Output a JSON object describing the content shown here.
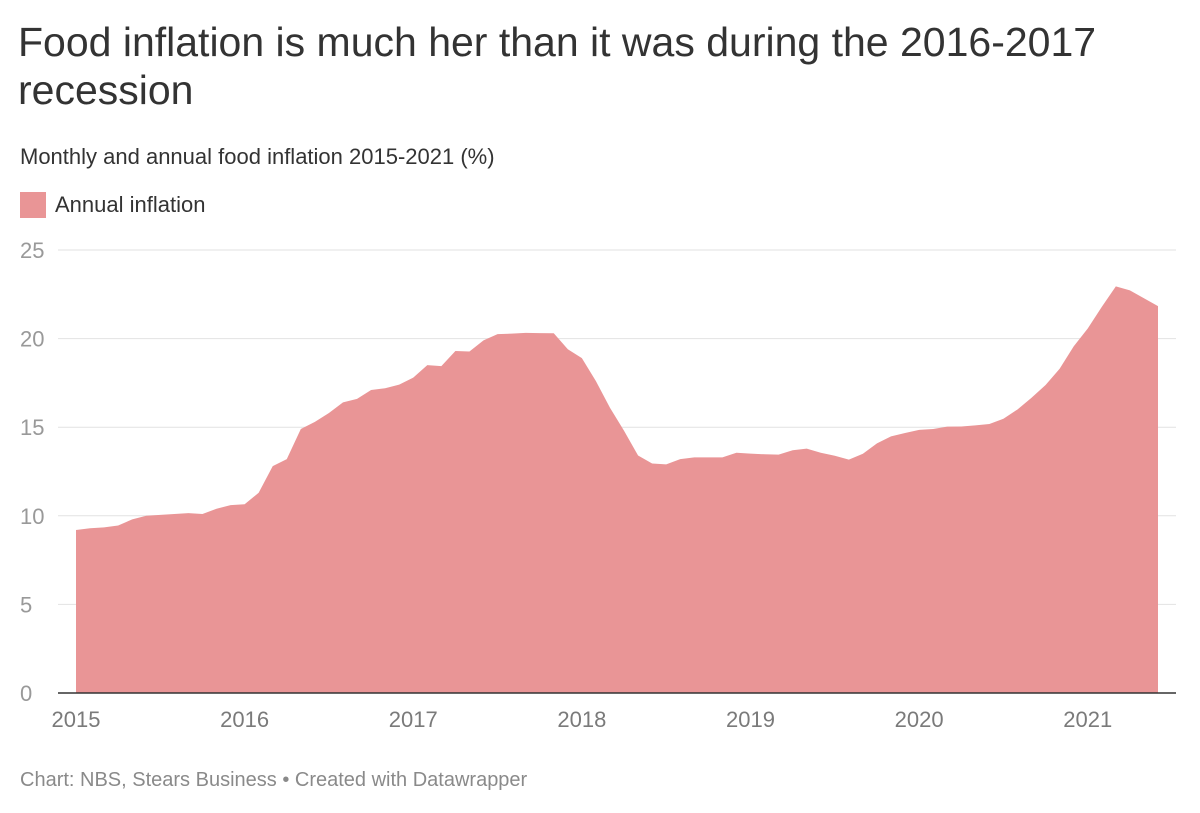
{
  "title": "Food inflation is much her than it was during the 2016-2017 recession",
  "subtitle": "Monthly and annual food inflation 2015-2021 (%)",
  "source_note": "Chart: NBS, Stears Business • Created with Datawrapper",
  "colors": {
    "series": "#e99596",
    "grid": "#e2e2e2",
    "baseline": "#333333",
    "tick_text": "#999999",
    "year_text": "#7a7a7a"
  },
  "chart_data": {
    "type": "area",
    "legend": [
      "Annual inflation"
    ],
    "legend_placement": "top-left",
    "grid": true,
    "ylim": [
      0,
      25
    ],
    "y_ticks": [
      0,
      5,
      10,
      15,
      20,
      25
    ],
    "x_ticks": [
      2015,
      2016,
      2017,
      2018,
      2019,
      2020,
      2021
    ],
    "x_range": [
      "2015-01",
      "2021-06"
    ],
    "series": [
      {
        "name": "Annual inflation",
        "x": [
          "2015-01",
          "2015-02",
          "2015-03",
          "2015-04",
          "2015-05",
          "2015-06",
          "2015-07",
          "2015-08",
          "2015-09",
          "2015-10",
          "2015-11",
          "2015-12",
          "2016-01",
          "2016-02",
          "2016-03",
          "2016-04",
          "2016-05",
          "2016-06",
          "2016-07",
          "2016-08",
          "2016-09",
          "2016-10",
          "2016-11",
          "2016-12",
          "2017-01",
          "2017-02",
          "2017-03",
          "2017-04",
          "2017-05",
          "2017-06",
          "2017-07",
          "2017-08",
          "2017-09",
          "2017-10",
          "2017-11",
          "2017-12",
          "2018-01",
          "2018-02",
          "2018-03",
          "2018-04",
          "2018-05",
          "2018-06",
          "2018-07",
          "2018-08",
          "2018-09",
          "2018-10",
          "2018-11",
          "2018-12",
          "2019-01",
          "2019-02",
          "2019-03",
          "2019-04",
          "2019-05",
          "2019-06",
          "2019-07",
          "2019-08",
          "2019-09",
          "2019-10",
          "2019-11",
          "2019-12",
          "2020-01",
          "2020-02",
          "2020-03",
          "2020-04",
          "2020-05",
          "2020-06",
          "2020-07",
          "2020-08",
          "2020-09",
          "2020-10",
          "2020-11",
          "2020-12",
          "2021-01",
          "2021-02",
          "2021-03",
          "2021-04",
          "2021-05",
          "2021-06"
        ],
        "values": [
          9.2,
          9.3,
          9.35,
          9.45,
          9.8,
          10.0,
          10.05,
          10.1,
          10.15,
          10.1,
          10.4,
          10.6,
          10.65,
          11.3,
          12.8,
          13.2,
          14.9,
          15.3,
          15.8,
          16.4,
          16.6,
          17.1,
          17.2,
          17.4,
          17.8,
          18.5,
          18.45,
          19.3,
          19.27,
          19.9,
          20.25,
          20.28,
          20.32,
          20.31,
          20.3,
          19.4,
          18.9,
          17.6,
          16.1,
          14.8,
          13.4,
          12.95,
          12.9,
          13.2,
          13.3,
          13.3,
          13.3,
          13.56,
          13.51,
          13.47,
          13.45,
          13.7,
          13.79,
          13.56,
          13.39,
          13.17,
          13.5,
          14.09,
          14.48,
          14.67,
          14.85,
          14.9,
          15.03,
          15.04,
          15.1,
          15.18,
          15.48,
          16.0,
          16.66,
          17.38,
          18.3,
          19.56,
          20.57,
          21.79,
          22.95,
          22.72,
          22.28,
          21.83
        ]
      }
    ]
  }
}
